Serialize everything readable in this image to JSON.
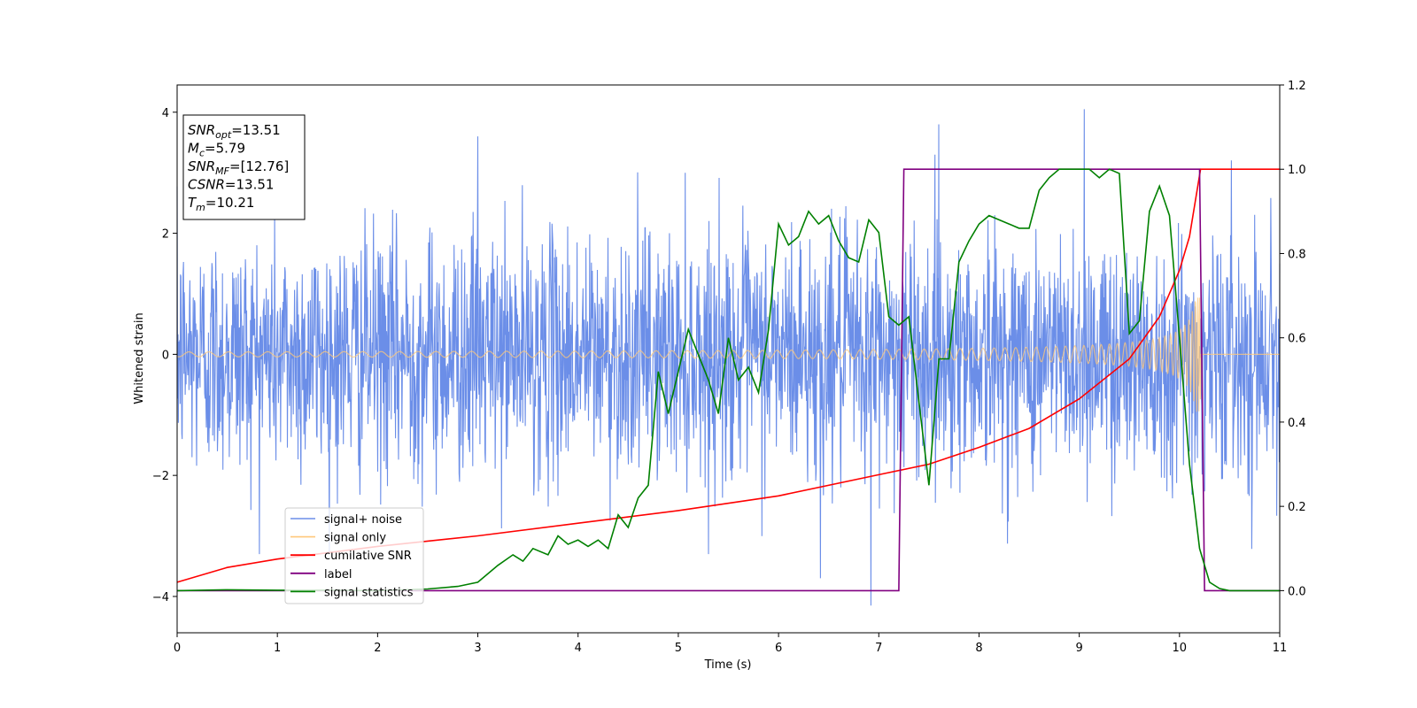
{
  "chart_data": {
    "type": "line",
    "title": "",
    "xlabel": "Time (s)",
    "ylabel": "Whitened strain",
    "xlim": [
      0,
      11
    ],
    "ylim": [
      -4.6,
      4.45
    ],
    "y2lim": [
      -0.1,
      1.2
    ],
    "xticks": [
      "0",
      "1",
      "2",
      "3",
      "4",
      "5",
      "6",
      "7",
      "8",
      "9",
      "10",
      "11"
    ],
    "yticks": [
      "4",
      "2",
      "0",
      "−2",
      "−4"
    ],
    "y2ticks": [
      "0.0",
      "0.2",
      "0.4",
      "0.6",
      "0.8",
      "1.0",
      "1.2"
    ],
    "grid": false,
    "legend_position": "lower-left",
    "info_box": {
      "position": "top-left",
      "lines": [
        {
          "main": "SNR",
          "sub": "opt",
          "rest": "=13.51"
        },
        {
          "main": "M",
          "sub": "c",
          "rest": "=5.79"
        },
        {
          "main": "SNR",
          "sub": "MF",
          "rest": "=[12.76]"
        },
        {
          "main": "CSNR",
          "sub": "",
          "rest": "=13.51"
        },
        {
          "main": "T",
          "sub": "m",
          "rest": "=10.21"
        }
      ]
    },
    "series": [
      {
        "name": "signal+ noise",
        "axis": "left",
        "color": "#6b8ee8",
        "kind": "noise",
        "sigma": 1.0,
        "note_spikes": [
          [
            7.6,
            3.8
          ],
          [
            9.05,
            4.05
          ],
          [
            6.92,
            -4.15
          ],
          [
            3.0,
            3.6
          ],
          [
            6.42,
            -3.7
          ]
        ]
      },
      {
        "name": "signal only",
        "axis": "left",
        "color": "#ffc87a",
        "kind": "chirp",
        "t_merge": 10.21,
        "amplitude_start": 0.04,
        "amplitude_end": 0.95
      },
      {
        "name": "cumilative SNR",
        "axis": "right",
        "color": "#ff0000",
        "kind": "curve",
        "x": [
          0,
          0.5,
          1,
          2,
          3,
          4,
          5,
          6,
          7,
          7.5,
          8,
          8.5,
          9,
          9.5,
          9.8,
          10,
          10.1,
          10.21,
          11
        ],
        "values": [
          0.02,
          0.055,
          0.075,
          0.105,
          0.13,
          0.16,
          0.19,
          0.225,
          0.275,
          0.3,
          0.34,
          0.385,
          0.455,
          0.55,
          0.65,
          0.76,
          0.84,
          1.0,
          1.0
        ]
      },
      {
        "name": "label",
        "axis": "right",
        "color": "#800080",
        "kind": "step",
        "x": [
          0,
          7.2,
          7.25,
          10.2,
          10.25,
          11
        ],
        "values": [
          0,
          0,
          1,
          1,
          0,
          0
        ]
      },
      {
        "name": "signal statistics",
        "axis": "right",
        "color": "#008000",
        "kind": "curve",
        "x": [
          0,
          0.5,
          1,
          1.5,
          2,
          2.5,
          2.8,
          3.0,
          3.2,
          3.35,
          3.45,
          3.55,
          3.7,
          3.8,
          3.9,
          4.0,
          4.1,
          4.2,
          4.3,
          4.4,
          4.5,
          4.6,
          4.7,
          4.8,
          4.9,
          5.0,
          5.1,
          5.2,
          5.3,
          5.4,
          5.5,
          5.6,
          5.7,
          5.8,
          5.9,
          6.0,
          6.1,
          6.2,
          6.3,
          6.4,
          6.5,
          6.6,
          6.7,
          6.8,
          6.9,
          7.0,
          7.1,
          7.2,
          7.3,
          7.4,
          7.5,
          7.6,
          7.7,
          7.8,
          7.9,
          8.0,
          8.1,
          8.2,
          8.3,
          8.4,
          8.5,
          8.6,
          8.7,
          8.8,
          9.0,
          9.1,
          9.2,
          9.3,
          9.4,
          9.5,
          9.6,
          9.7,
          9.8,
          9.9,
          10.0,
          10.1,
          10.2,
          10.3,
          10.4,
          10.5,
          11
        ],
        "values": [
          0.0,
          0.002,
          0.001,
          0.001,
          0.0,
          0.004,
          0.01,
          0.02,
          0.06,
          0.085,
          0.07,
          0.1,
          0.085,
          0.13,
          0.11,
          0.12,
          0.105,
          0.12,
          0.1,
          0.18,
          0.15,
          0.22,
          0.25,
          0.52,
          0.42,
          0.52,
          0.62,
          0.56,
          0.5,
          0.42,
          0.6,
          0.5,
          0.53,
          0.47,
          0.62,
          0.87,
          0.82,
          0.84,
          0.9,
          0.87,
          0.89,
          0.83,
          0.79,
          0.78,
          0.88,
          0.85,
          0.65,
          0.63,
          0.65,
          0.45,
          0.25,
          0.55,
          0.55,
          0.78,
          0.83,
          0.87,
          0.89,
          0.88,
          0.87,
          0.86,
          0.86,
          0.95,
          0.98,
          1.0,
          1.0,
          1.0,
          0.98,
          1.0,
          0.99,
          0.61,
          0.64,
          0.9,
          0.96,
          0.89,
          0.6,
          0.3,
          0.1,
          0.02,
          0.005,
          0.0,
          0.0
        ]
      }
    ]
  }
}
